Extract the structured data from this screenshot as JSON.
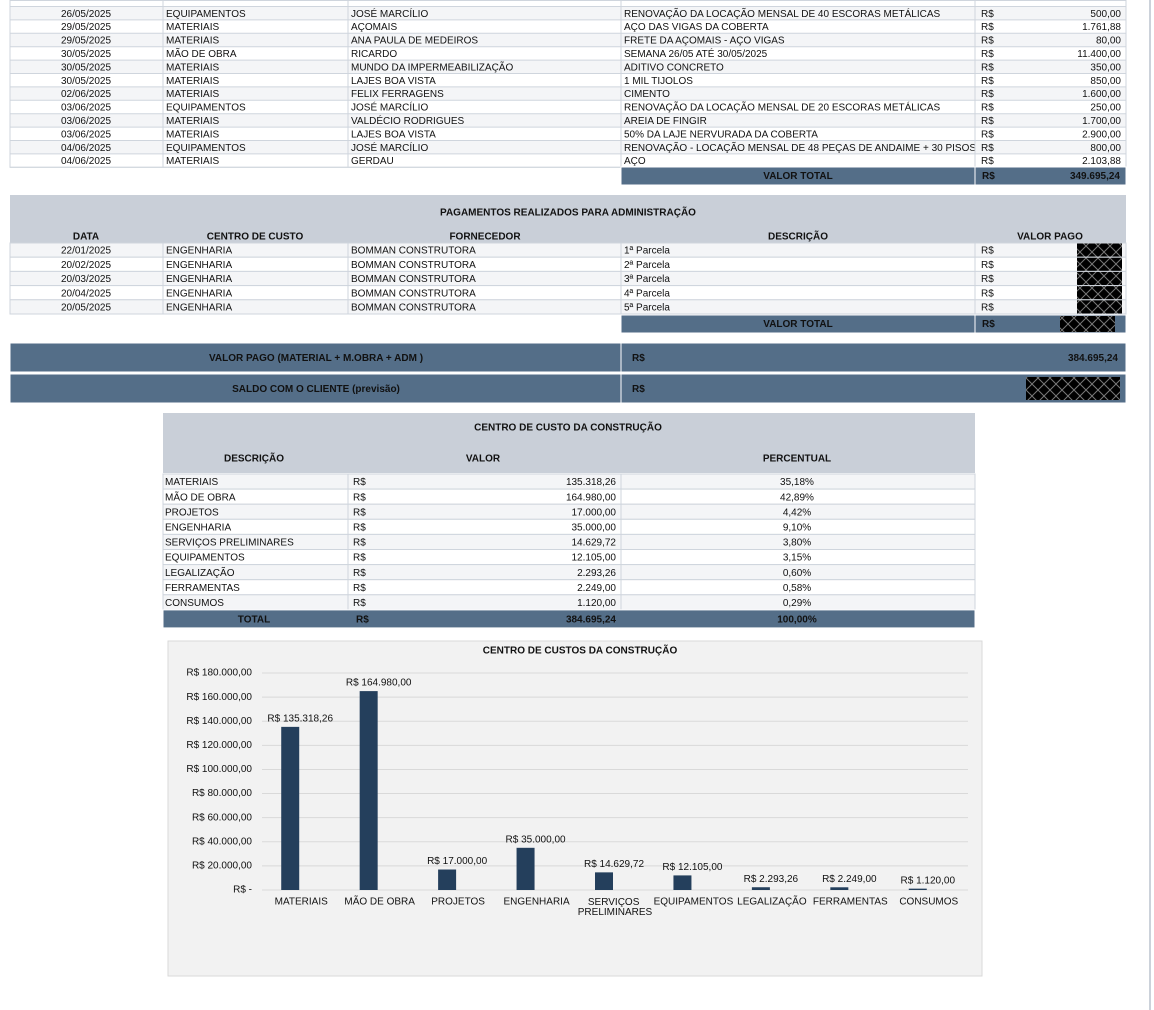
{
  "expenses_table": {
    "rows": [
      [
        "26/05/2025",
        "EQUIPAMENTOS",
        "JOSÉ MARCÍLIO",
        "RENOVAÇÃO DA LOCAÇÃO MENSAL DE 40 ESCORAS METÁLICAS",
        "R$",
        "500,00"
      ],
      [
        "29/05/2025",
        "MATERIAIS",
        "AÇOMAIS",
        "AÇO DAS VIGAS DA COBERTA",
        "R$",
        "1.761,88"
      ],
      [
        "29/05/2025",
        "MATERIAIS",
        "ANA PAULA DE MEDEIROS",
        "FRETE DA AÇOMAIS - AÇO VIGAS",
        "R$",
        "80,00"
      ],
      [
        "30/05/2025",
        "MÃO DE OBRA",
        "RICARDO",
        "SEMANA 26/05 ATÉ 30/05/2025",
        "R$",
        "11.400,00"
      ],
      [
        "30/05/2025",
        "MATERIAIS",
        "MUNDO DA IMPERMEABILIZAÇÃO",
        "ADITIVO CONCRETO",
        "R$",
        "350,00"
      ],
      [
        "30/05/2025",
        "MATERIAIS",
        "LAJES BOA VISTA",
        "1 MIL TIJOLOS",
        "R$",
        "850,00"
      ],
      [
        "02/06/2025",
        "MATERIAIS",
        "FELIX FERRAGENS",
        "CIMENTO",
        "R$",
        "1.600,00"
      ],
      [
        "03/06/2025",
        "EQUIPAMENTOS",
        "JOSÉ MARCÍLIO",
        "RENOVAÇÃO DA LOCAÇÃO MENSAL DE 20 ESCORAS METÁLICAS",
        "R$",
        "250,00"
      ],
      [
        "03/06/2025",
        "MATERIAIS",
        "VALDÉCIO RODRIGUES",
        "AREIA DE FINGIR",
        "R$",
        "1.700,00"
      ],
      [
        "03/06/2025",
        "MATERIAIS",
        "LAJES BOA VISTA",
        "50% DA LAJE NERVURADA DA COBERTA",
        "R$",
        "2.900,00"
      ],
      [
        "04/06/2025",
        "EQUIPAMENTOS",
        "JOSÉ MARCÍLIO",
        "RENOVAÇÃO - LOCAÇÃO MENSAL DE 48 PEÇAS DE ANDAIME + 30 PISOS",
        "R$",
        "800,00"
      ],
      [
        "04/06/2025",
        "MATERIAIS",
        "GERDAU",
        "AÇO",
        "R$",
        "2.103,88"
      ]
    ],
    "total": {
      "label": "VALOR TOTAL",
      "currency": "R$",
      "value": "349.695,24"
    }
  },
  "admin_payments": {
    "title": "PAGAMENTOS REALIZADOS PARA ADMINISTRAÇÃO",
    "headers": [
      "DATA",
      "CENTRO DE CUSTO",
      "FORNECEDOR",
      "DESCRIÇÃO",
      "VALOR PAGO"
    ],
    "rows": [
      [
        "22/01/2025",
        "ENGENHARIA",
        "BOMMAN CONSTRUTORA",
        "1ª Parcela",
        "R$"
      ],
      [
        "20/02/2025",
        "ENGENHARIA",
        "BOMMAN CONSTRUTORA",
        "2ª Parcela",
        "R$"
      ],
      [
        "20/03/2025",
        "ENGENHARIA",
        "BOMMAN CONSTRUTORA",
        "3ª Parcela",
        "R$"
      ],
      [
        "20/04/2025",
        "ENGENHARIA",
        "BOMMAN CONSTRUTORA",
        "4ª Parcela",
        "R$"
      ],
      [
        "20/05/2025",
        "ENGENHARIA",
        "BOMMAN CONSTRUTORA",
        "5ª Parcela",
        "R$"
      ]
    ],
    "total": {
      "label": "VALOR TOTAL",
      "currency": "R$"
    }
  },
  "summary": [
    {
      "label": "VALOR PAGO (MATERIAL + M.OBRA + ADM )",
      "currency": "R$",
      "value": "384.695,24"
    },
    {
      "label": "SALDO COM O CLIENTE (previsão)",
      "currency": "R$"
    }
  ],
  "cost_center_table": {
    "title": "CENTRO DE CUSTO DA CONSTRUÇÃO",
    "headers": [
      "DESCRIÇÃO",
      "VALOR",
      "PERCENTUAL"
    ],
    "rows": [
      [
        "MATERIAIS",
        "R$",
        "135.318,26",
        "35,18%"
      ],
      [
        "MÃO DE OBRA",
        "R$",
        "164.980,00",
        "42,89%"
      ],
      [
        "PROJETOS",
        "R$",
        "17.000,00",
        "4,42%"
      ],
      [
        "ENGENHARIA",
        "R$",
        "35.000,00",
        "9,10%"
      ],
      [
        "SERVIÇOS PRELIMINARES",
        "R$",
        "14.629,72",
        "3,80%"
      ],
      [
        "EQUIPAMENTOS",
        "R$",
        "12.105,00",
        "3,15%"
      ],
      [
        "LEGALIZAÇÃO",
        "R$",
        "2.293,26",
        "0,60%"
      ],
      [
        "FERRAMENTAS",
        "R$",
        "2.249,00",
        "0,58%"
      ],
      [
        "CONSUMOS",
        "R$",
        "1.120,00",
        "0,29%"
      ]
    ],
    "total": [
      "TOTAL",
      "R$",
      "384.695,24",
      "100,00%"
    ]
  },
  "chart_data": {
    "type": "bar",
    "title": "CENTRO DE CUSTOS DA CONSTRUÇÃO",
    "categories": [
      "MATERIAIS",
      "MÃO DE OBRA",
      "PROJETOS",
      "ENGENHARIA",
      "SERVIÇOS PRELIMINARES",
      "EQUIPAMENTOS",
      "LEGALIZAÇÃO",
      "FERRAMENTAS",
      "CONSUMOS"
    ],
    "values": [
      135318.26,
      164980,
      17000,
      35000,
      14629.72,
      12105,
      2293.26,
      2249,
      1120
    ],
    "value_labels": [
      "R$ 135.318,26",
      "R$ 164.980,00",
      "R$ 17.000,00",
      "R$ 35.000,00",
      "R$ 14.629,72",
      "R$ 12.105,00",
      "R$ 2.293,26",
      "R$ 2.249,00",
      "R$ 1.120,00"
    ],
    "color": "#243f5c",
    "ylim": [
      0,
      180000
    ],
    "yticks": [
      {
        "value": 0,
        "label": "R$ -"
      },
      {
        "value": 20000,
        "label": "R$ 20.000,00"
      },
      {
        "value": 40000,
        "label": "R$ 40.000,00"
      },
      {
        "value": 60000,
        "label": "R$ 60.000,00"
      },
      {
        "value": 80000,
        "label": "R$ 80.000,00"
      },
      {
        "value": 100000,
        "label": "R$ 100.000,00"
      },
      {
        "value": 120000,
        "label": "R$ 120.000,00"
      },
      {
        "value": 140000,
        "label": "R$ 140.000,00"
      },
      {
        "value": 160000,
        "label": "R$ 160.000,00"
      },
      {
        "value": 180000,
        "label": "R$ 180.000,00"
      }
    ],
    "grid": true
  }
}
